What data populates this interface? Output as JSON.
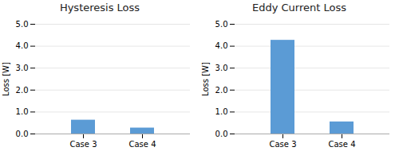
{
  "chart_data": [
    {
      "type": "bar",
      "title": "Hysteresis Loss",
      "categories": [
        "Case 3",
        "Case 4"
      ],
      "values": [
        0.63,
        0.27
      ],
      "color": "#5B9BD5",
      "ylabel": "Loss [W]",
      "ylim": [
        0,
        5
      ],
      "yticks": [
        0,
        1,
        2,
        3,
        4,
        5
      ],
      "grid": true
    },
    {
      "type": "bar",
      "title": "Eddy Current Loss",
      "categories": [
        "Case 3",
        "Case 4"
      ],
      "values": [
        4.27,
        0.55
      ],
      "color": "#5B9BD5",
      "ylabel": "Loss [W]",
      "ylim": [
        0,
        5
      ],
      "yticks": [
        0,
        1,
        2,
        3,
        4,
        5
      ],
      "grid": true
    }
  ]
}
